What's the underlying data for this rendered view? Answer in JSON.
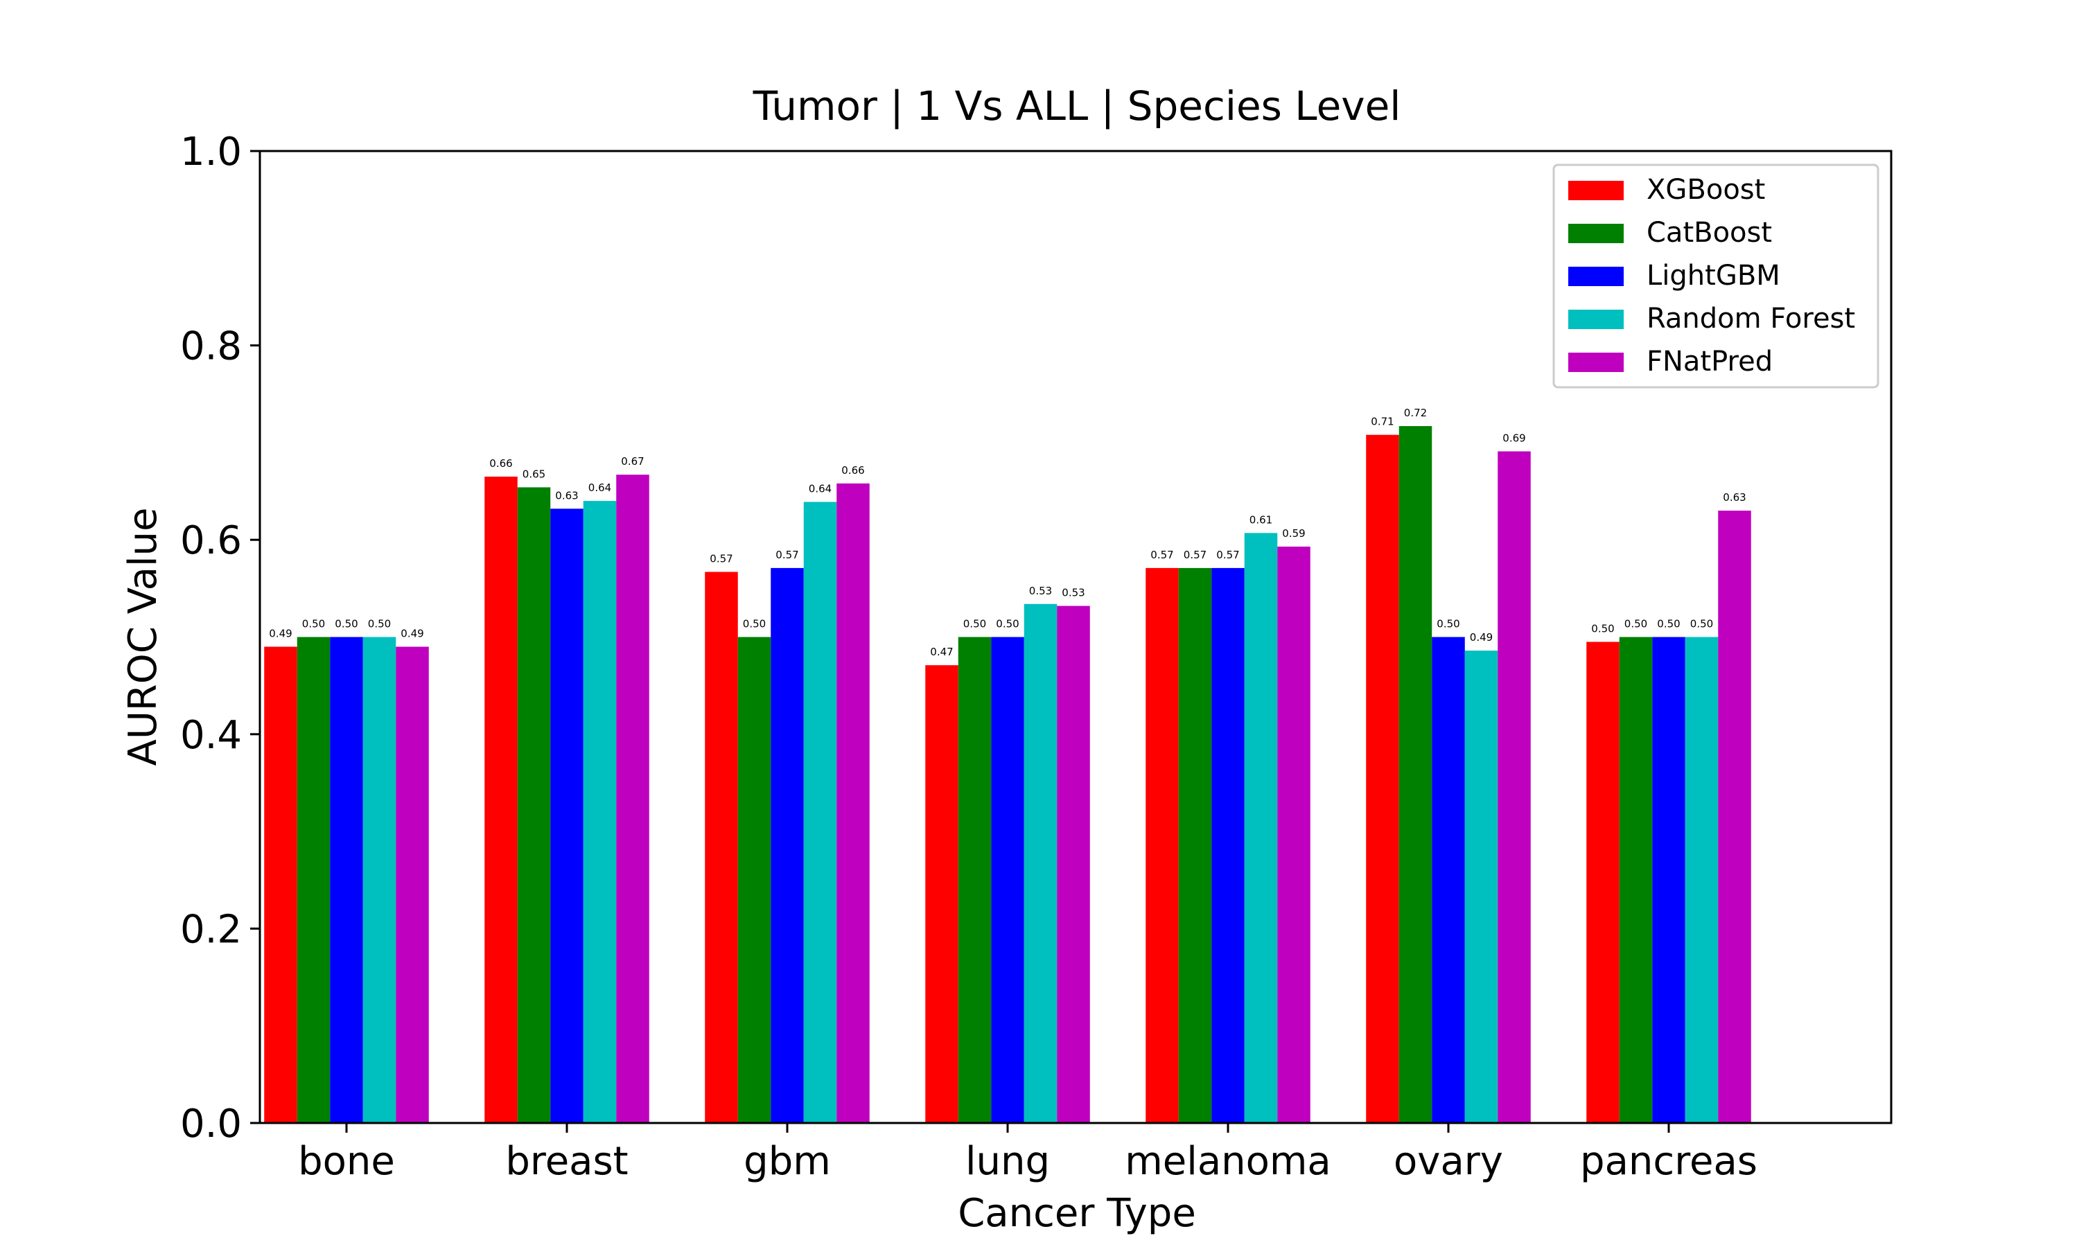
{
  "chart_data": {
    "type": "bar",
    "title": "Tumor | 1 Vs ALL | Species Level",
    "xlabel": "Cancer Type",
    "ylabel": "AUROC Value",
    "ylim": [
      0,
      1
    ],
    "yticks": [
      "0.0",
      "0.2",
      "0.4",
      "0.6",
      "0.8",
      "1.0"
    ],
    "grid": false,
    "legend_position": "top-right",
    "categories": [
      "bone",
      "breast",
      "gbm",
      "lung",
      "melanoma",
      "ovary",
      "pancreas"
    ],
    "series": [
      {
        "name": "XGBoost",
        "color": "#ff0000",
        "values": [
          0.49,
          0.665,
          0.567,
          0.471,
          0.571,
          0.708,
          0.495
        ],
        "labels": [
          "0.49",
          "0.66",
          "0.57",
          "0.47",
          "0.57",
          "0.71",
          "0.50"
        ]
      },
      {
        "name": "CatBoost",
        "color": "#008000",
        "values": [
          0.5,
          0.654,
          0.5,
          0.5,
          0.571,
          0.717,
          0.5
        ],
        "labels": [
          "0.50",
          "0.65",
          "0.50",
          "0.50",
          "0.57",
          "0.72",
          "0.50"
        ]
      },
      {
        "name": "LightGBM",
        "color": "#0000ff",
        "values": [
          0.5,
          0.632,
          0.571,
          0.5,
          0.571,
          0.5,
          0.5
        ],
        "labels": [
          "0.50",
          "0.63",
          "0.57",
          "0.50",
          "0.57",
          "0.50",
          "0.50"
        ]
      },
      {
        "name": "Random Forest",
        "color": "#00bfbf",
        "values": [
          0.5,
          0.64,
          0.639,
          0.534,
          0.607,
          0.486,
          0.5
        ],
        "labels": [
          "0.50",
          "0.64",
          "0.64",
          "0.53",
          "0.61",
          "0.49",
          "0.50"
        ]
      },
      {
        "name": "FNatPred",
        "color": "#bf00bf",
        "values": [
          0.49,
          0.667,
          0.658,
          0.532,
          0.593,
          0.691,
          0.63
        ],
        "labels": [
          "0.49",
          "0.67",
          "0.66",
          "0.53",
          "0.59",
          "0.69",
          "0.63"
        ]
      }
    ]
  }
}
